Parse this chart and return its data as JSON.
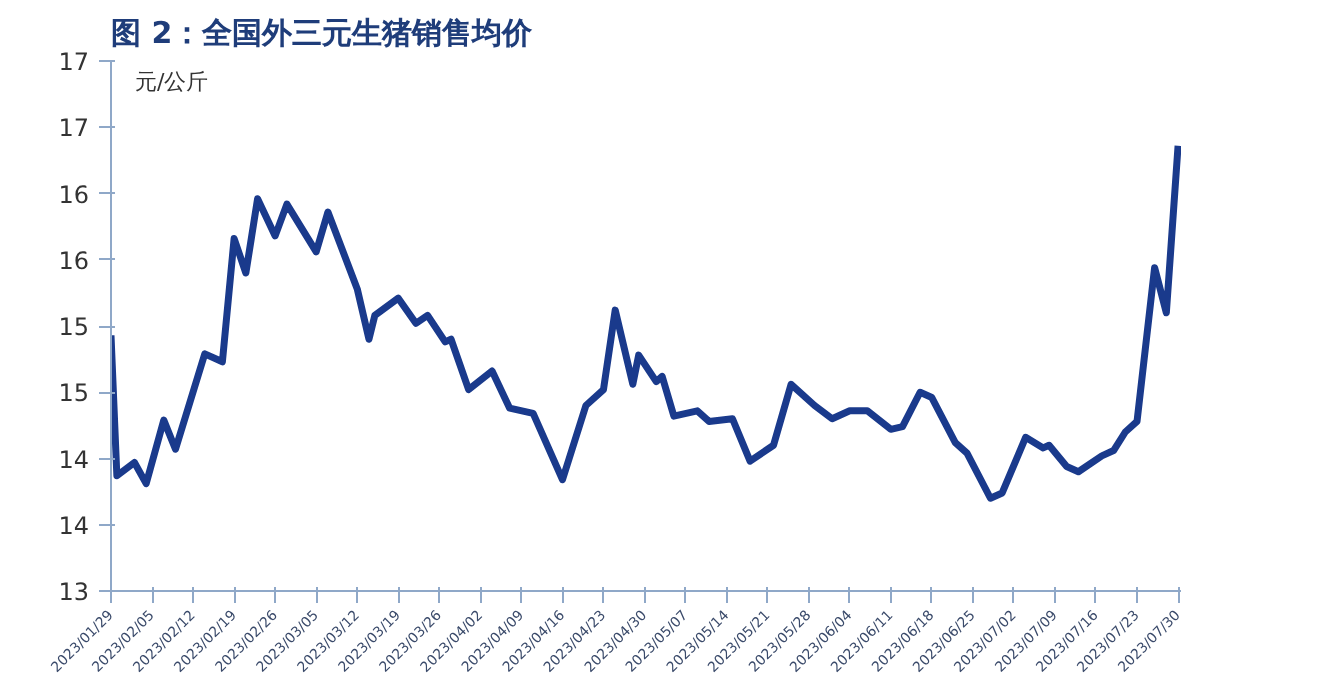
{
  "chart_data": {
    "type": "line",
    "title": "图 2：全国外三元生猪销售均价",
    "ylabel": "元/公斤",
    "x": [
      "2023-01-29",
      "2023-01-30",
      "2023-02-02",
      "2023-02-04",
      "2023-02-07",
      "2023-02-09",
      "2023-02-14",
      "2023-02-17",
      "2023-02-19",
      "2023-02-21",
      "2023-02-23",
      "2023-02-26",
      "2023-02-28",
      "2023-03-05",
      "2023-03-07",
      "2023-03-12",
      "2023-03-14",
      "2023-03-15",
      "2023-03-19",
      "2023-03-22",
      "2023-03-24",
      "2023-03-27",
      "2023-03-28",
      "2023-03-31",
      "2023-04-04",
      "2023-04-07",
      "2023-04-11",
      "2023-04-16",
      "2023-04-20",
      "2023-04-23",
      "2023-04-25",
      "2023-04-28",
      "2023-04-29",
      "2023-05-02",
      "2023-05-03",
      "2023-05-05",
      "2023-05-09",
      "2023-05-11",
      "2023-05-15",
      "2023-05-18",
      "2023-05-22",
      "2023-05-25",
      "2023-05-29",
      "2023-06-01",
      "2023-06-04",
      "2023-06-07",
      "2023-06-11",
      "2023-06-13",
      "2023-06-16",
      "2023-06-18",
      "2023-06-22",
      "2023-06-24",
      "2023-06-28",
      "2023-06-30",
      "2023-07-04",
      "2023-07-07",
      "2023-07-08",
      "2023-07-11",
      "2023-07-13",
      "2023-07-17",
      "2023-07-19",
      "2023-07-21",
      "2023-07-23",
      "2023-07-26",
      "2023-07-28",
      "2023-07-30"
    ],
    "series": [
      {
        "color": "#1a3a8c",
        "values": [
          14.93,
          13.87,
          13.97,
          13.81,
          14.29,
          14.07,
          14.79,
          14.73,
          15.66,
          15.4,
          15.96,
          15.68,
          15.92,
          15.56,
          15.86,
          15.28,
          14.9,
          15.08,
          15.21,
          15.02,
          15.08,
          14.88,
          14.9,
          14.52,
          14.66,
          14.38,
          14.34,
          13.84,
          14.4,
          14.52,
          15.12,
          14.56,
          14.78,
          14.58,
          14.62,
          14.32,
          14.36,
          14.28,
          14.3,
          13.98,
          14.1,
          14.56,
          14.4,
          14.3,
          14.36,
          14.36,
          14.22,
          14.24,
          14.5,
          14.46,
          14.12,
          14.04,
          13.7,
          13.74,
          14.16,
          14.08,
          14.1,
          13.94,
          13.9,
          14.02,
          14.06,
          14.2,
          14.28,
          15.44,
          15.1,
          16.36
        ]
      }
    ],
    "xlim": [
      "2023-01-29",
      "2023-07-30"
    ],
    "xticks": [
      {
        "value": "2023-01-29",
        "label": "2023/01/29"
      },
      {
        "value": "2023-02-05",
        "label": "2023/02/05"
      },
      {
        "value": "2023-02-12",
        "label": "2023/02/12"
      },
      {
        "value": "2023-02-19",
        "label": "2023/02/19"
      },
      {
        "value": "2023-02-26",
        "label": "2023/02/26"
      },
      {
        "value": "2023-03-05",
        "label": "2023/03/05"
      },
      {
        "value": "2023-03-12",
        "label": "2023/03/12"
      },
      {
        "value": "2023-03-19",
        "label": "2023/03/19"
      },
      {
        "value": "2023-03-26",
        "label": "2023/03/26"
      },
      {
        "value": "2023-04-02",
        "label": "2023/04/02"
      },
      {
        "value": "2023-04-09",
        "label": "2023/04/09"
      },
      {
        "value": "2023-04-16",
        "label": "2023/04/16"
      },
      {
        "value": "2023-04-23",
        "label": "2023/04/23"
      },
      {
        "value": "2023-04-30",
        "label": "2023/04/30"
      },
      {
        "value": "2023-05-07",
        "label": "2023/05/07"
      },
      {
        "value": "2023-05-14",
        "label": "2023/05/14"
      },
      {
        "value": "2023-05-21",
        "label": "2023/05/21"
      },
      {
        "value": "2023-05-28",
        "label": "2023/05/28"
      },
      {
        "value": "2023-06-04",
        "label": "2023/06/04"
      },
      {
        "value": "2023-06-11",
        "label": "2023/06/11"
      },
      {
        "value": "2023-06-18",
        "label": "2023/06/18"
      },
      {
        "value": "2023-06-25",
        "label": "2023/06/25"
      },
      {
        "value": "2023-07-02",
        "label": "2023/07/02"
      },
      {
        "value": "2023-07-09",
        "label": "2023/07/09"
      },
      {
        "value": "2023-07-16",
        "label": "2023/07/16"
      },
      {
        "value": "2023-07-23",
        "label": "2023/07/23"
      },
      {
        "value": "2023-07-30",
        "label": "2023/07/30"
      }
    ],
    "ylim": [
      13,
      17
    ],
    "yticks": [
      13,
      {
        "value": 13.5,
        "label": "14"
      },
      14,
      {
        "value": 14.5,
        "label": "15"
      },
      15,
      {
        "value": 15.5,
        "label": "16"
      },
      16,
      {
        "value": 16.5,
        "label": "17"
      },
      17
    ],
    "grid": false,
    "line_style": "solid"
  }
}
